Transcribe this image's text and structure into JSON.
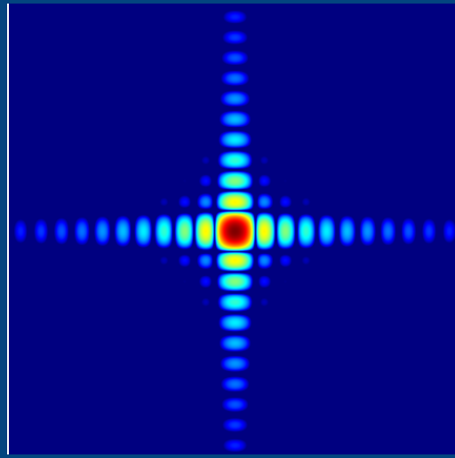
{
  "image": {
    "kind": "diffraction-pattern",
    "colormap": "jet",
    "frame_color": "#03457f",
    "edge_color": "#f2f6fb",
    "background_color": "#00007f"
  }
}
